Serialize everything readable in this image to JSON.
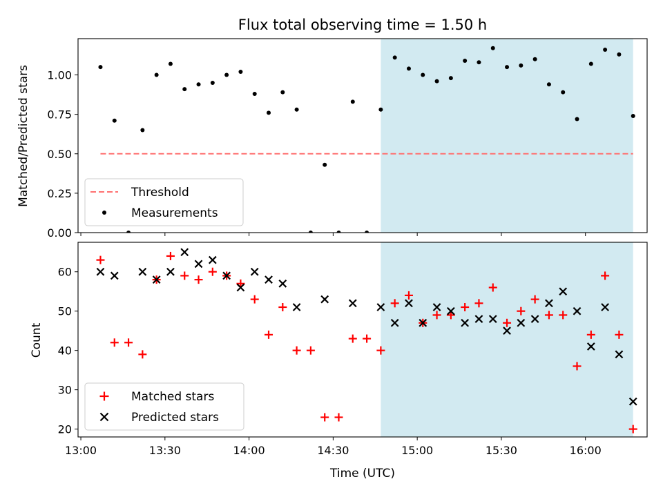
{
  "figure": {
    "title": "Flux total observing time = 1.50 h",
    "xlabel": "Time (UTC)"
  },
  "chart_data": [
    {
      "type": "scatter",
      "ylabel": "Matched/Predicted stars",
      "ylim": [
        0,
        1.23
      ],
      "xlim": [
        "12:59",
        "16:22"
      ],
      "yticks": [
        0.0,
        0.25,
        0.5,
        0.75,
        1.0
      ],
      "ytick_labels": [
        "0.00",
        "0.25",
        "0.50",
        "0.75",
        "1.00"
      ],
      "legend": {
        "placement": "lower-left",
        "entries": [
          "Threshold",
          "Measurements"
        ]
      },
      "shaded_region": {
        "x_start": "14:47",
        "x_end": "16:17",
        "color": "#add8e6"
      },
      "threshold": {
        "name": "Threshold",
        "y": 0.5,
        "x_start": "13:07",
        "x_end": "16:17",
        "color": "#ff7070",
        "style": "dashed"
      },
      "series": [
        {
          "name": "Measurements",
          "color": "#000000",
          "marker": "dot",
          "points": [
            [
              "13:07",
              1.05
            ],
            [
              "13:12",
              0.71
            ],
            [
              "13:17",
              0.0
            ],
            [
              "13:22",
              0.65
            ],
            [
              "13:27",
              1.0
            ],
            [
              "13:32",
              1.07
            ],
            [
              "13:37",
              0.91
            ],
            [
              "13:42",
              0.94
            ],
            [
              "13:47",
              0.95
            ],
            [
              "13:52",
              1.0
            ],
            [
              "13:57",
              1.02
            ],
            [
              "14:02",
              0.88
            ],
            [
              "14:07",
              0.76
            ],
            [
              "14:12",
              0.89
            ],
            [
              "14:17",
              0.78
            ],
            [
              "14:22",
              0.0
            ],
            [
              "14:27",
              0.43
            ],
            [
              "14:32",
              0.0
            ],
            [
              "14:37",
              0.83
            ],
            [
              "14:42",
              0.0
            ],
            [
              "14:47",
              0.78
            ],
            [
              "14:52",
              1.11
            ],
            [
              "14:57",
              1.04
            ],
            [
              "15:02",
              1.0
            ],
            [
              "15:07",
              0.96
            ],
            [
              "15:12",
              0.98
            ],
            [
              "15:17",
              1.09
            ],
            [
              "15:22",
              1.08
            ],
            [
              "15:27",
              1.17
            ],
            [
              "15:32",
              1.05
            ],
            [
              "15:37",
              1.06
            ],
            [
              "15:42",
              1.1
            ],
            [
              "15:47",
              0.94
            ],
            [
              "15:52",
              0.89
            ],
            [
              "15:57",
              0.72
            ],
            [
              "16:02",
              1.07
            ],
            [
              "16:07",
              1.16
            ],
            [
              "16:12",
              1.13
            ],
            [
              "16:17",
              0.74
            ]
          ]
        }
      ]
    },
    {
      "type": "scatter",
      "ylabel": "Count",
      "ylim": [
        18,
        67.5
      ],
      "xlim": [
        "12:59",
        "16:22"
      ],
      "yticks": [
        20,
        30,
        40,
        50,
        60
      ],
      "ytick_labels": [
        "20",
        "30",
        "40",
        "50",
        "60"
      ],
      "xticks": [
        "13:00",
        "13:30",
        "14:00",
        "14:30",
        "15:00",
        "15:30",
        "16:00"
      ],
      "xtick_labels": [
        "13:00",
        "13:30",
        "14:00",
        "14:30",
        "15:00",
        "15:30",
        "16:00"
      ],
      "legend": {
        "placement": "lower-left",
        "entries": [
          "Matched stars",
          "Predicted stars"
        ]
      },
      "shaded_region": {
        "x_start": "14:47",
        "x_end": "16:17",
        "color": "#add8e6"
      },
      "series": [
        {
          "name": "Matched stars",
          "color": "#ff0000",
          "marker": "plus",
          "points": [
            [
              "13:07",
              63
            ],
            [
              "13:12",
              42
            ],
            [
              "13:17",
              42
            ],
            [
              "13:22",
              39
            ],
            [
              "13:27",
              58
            ],
            [
              "13:32",
              64
            ],
            [
              "13:37",
              59
            ],
            [
              "13:42",
              58
            ],
            [
              "13:47",
              60
            ],
            [
              "13:52",
              59
            ],
            [
              "13:57",
              57
            ],
            [
              "14:02",
              53
            ],
            [
              "14:07",
              44
            ],
            [
              "14:12",
              51
            ],
            [
              "14:17",
              40
            ],
            [
              "14:22",
              40
            ],
            [
              "14:27",
              23
            ],
            [
              "14:32",
              23
            ],
            [
              "14:37",
              43
            ],
            [
              "14:42",
              43
            ],
            [
              "14:47",
              40
            ],
            [
              "14:52",
              52
            ],
            [
              "14:57",
              54
            ],
            [
              "15:02",
              47
            ],
            [
              "15:07",
              49
            ],
            [
              "15:12",
              49
            ],
            [
              "15:17",
              51
            ],
            [
              "15:22",
              52
            ],
            [
              "15:27",
              56
            ],
            [
              "15:32",
              47
            ],
            [
              "15:37",
              50
            ],
            [
              "15:42",
              53
            ],
            [
              "15:47",
              49
            ],
            [
              "15:52",
              49
            ],
            [
              "15:57",
              36
            ],
            [
              "16:02",
              44
            ],
            [
              "16:07",
              59
            ],
            [
              "16:12",
              44
            ],
            [
              "16:17",
              20
            ]
          ]
        },
        {
          "name": "Predicted stars",
          "color": "#000000",
          "marker": "x",
          "points": [
            [
              "13:07",
              60
            ],
            [
              "13:12",
              59
            ],
            [
              "13:22",
              60
            ],
            [
              "13:27",
              58
            ],
            [
              "13:32",
              60
            ],
            [
              "13:37",
              65
            ],
            [
              "13:42",
              62
            ],
            [
              "13:47",
              63
            ],
            [
              "13:52",
              59
            ],
            [
              "13:57",
              56
            ],
            [
              "14:02",
              60
            ],
            [
              "14:07",
              58
            ],
            [
              "14:12",
              57
            ],
            [
              "14:17",
              51
            ],
            [
              "14:27",
              53
            ],
            [
              "14:37",
              52
            ],
            [
              "14:47",
              51
            ],
            [
              "14:52",
              47
            ],
            [
              "14:57",
              52
            ],
            [
              "15:02",
              47
            ],
            [
              "15:07",
              51
            ],
            [
              "15:12",
              50
            ],
            [
              "15:17",
              47
            ],
            [
              "15:22",
              48
            ],
            [
              "15:27",
              48
            ],
            [
              "15:32",
              45
            ],
            [
              "15:37",
              47
            ],
            [
              "15:42",
              48
            ],
            [
              "15:47",
              52
            ],
            [
              "15:52",
              55
            ],
            [
              "15:57",
              50
            ],
            [
              "16:02",
              41
            ],
            [
              "16:07",
              51
            ],
            [
              "16:12",
              39
            ],
            [
              "16:17",
              27
            ]
          ]
        }
      ]
    }
  ]
}
